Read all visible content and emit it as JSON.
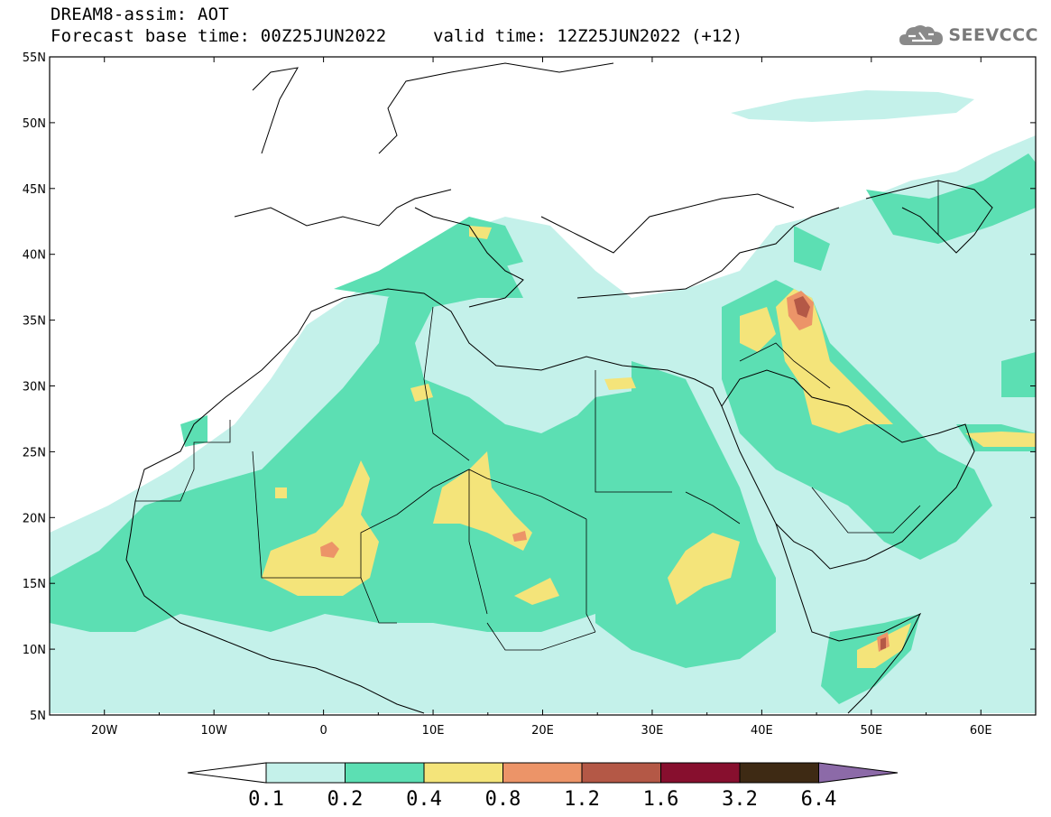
{
  "header": {
    "line1": "DREAM8-assim: AOT",
    "base": "Forecast base time: 00Z25JUN2022",
    "valid": "valid time: 12Z25JUN2022 (+12)"
  },
  "logo": {
    "text": "SEEVCCC",
    "icon": "cloud-icon"
  },
  "map": {
    "lon_range": [
      -25,
      65
    ],
    "lat_range": [
      5,
      55
    ],
    "lat_ticks": [
      "5N",
      "10N",
      "15N",
      "20N",
      "25N",
      "30N",
      "35N",
      "40N",
      "45N",
      "50N",
      "55N"
    ],
    "lon_ticks": [
      "20W",
      "10W",
      "0",
      "10E",
      "20E",
      "30E",
      "40E",
      "50E",
      "60E"
    ]
  },
  "colorbar": {
    "levels": [
      "0.1",
      "0.2",
      "0.4",
      "0.8",
      "1.2",
      "1.6",
      "3.2",
      "6.4"
    ],
    "colors": [
      "#c4f1ea",
      "#5cdfb3",
      "#f4e47a",
      "#ec9468",
      "#b45846",
      "#870f2e",
      "#3e2a14",
      "#8c6aa8"
    ]
  }
}
